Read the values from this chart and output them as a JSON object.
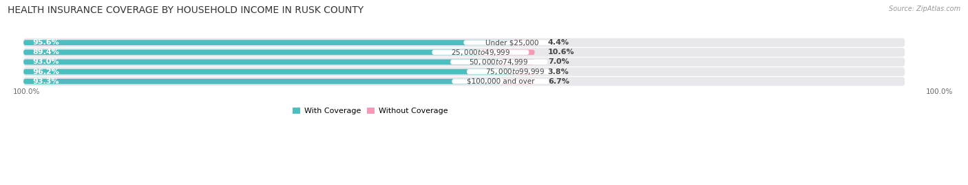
{
  "title": "HEALTH INSURANCE COVERAGE BY HOUSEHOLD INCOME IN RUSK COUNTY",
  "source": "Source: ZipAtlas.com",
  "categories": [
    "Under $25,000",
    "$25,000 to $49,999",
    "$50,000 to $74,999",
    "$75,000 to $99,999",
    "$100,000 and over"
  ],
  "with_coverage": [
    95.6,
    89.4,
    93.0,
    96.2,
    93.3
  ],
  "without_coverage": [
    4.4,
    10.6,
    7.0,
    3.8,
    6.7
  ],
  "color_with": "#4bbfbf",
  "color_without": "#f799b4",
  "color_with_light": "#a8dede",
  "row_bg": "#e8e8ec",
  "title_fontsize": 10,
  "label_fontsize": 8,
  "source_fontsize": 7,
  "legend_fontsize": 8,
  "bar_scale": 0.58
}
